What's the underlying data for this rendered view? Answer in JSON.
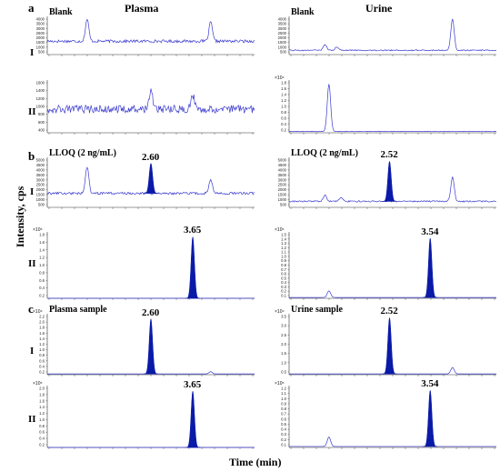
{
  "sections": [
    "a",
    "b",
    "c"
  ],
  "columns": [
    "Plasma",
    "Urine"
  ],
  "rows": [
    "I",
    "II"
  ],
  "y_axis_label": "Intensity, cps",
  "x_axis_label": "Time (min)",
  "chart_data": [
    {
      "type": "line",
      "section": "a",
      "column": "Plasma",
      "row": "I",
      "annotation": "Blank",
      "scale_text": "",
      "ytick_labels": [
        "4000",
        "3500",
        "3000",
        "2500",
        "2000",
        "1500",
        "1000",
        "500"
      ],
      "ylim": [
        300,
        4300
      ],
      "baseline": 1700,
      "noise": 150,
      "peaks": [
        [
          1.0,
          4000
        ],
        [
          4.1,
          3700
        ]
      ]
    },
    {
      "type": "line",
      "section": "a",
      "column": "Plasma",
      "row": "II",
      "annotation": "",
      "scale_text": "",
      "ytick_labels": [
        "1600",
        "1400",
        "1200",
        "1000",
        "800",
        "600",
        "400"
      ],
      "ylim": [
        300,
        1750
      ],
      "baseline": 950,
      "noise": 110,
      "peaks": [
        [
          2.6,
          1500
        ],
        [
          3.65,
          1350
        ]
      ]
    },
    {
      "type": "line",
      "section": "a",
      "column": "Urine",
      "row": "I",
      "annotation": "Blank",
      "scale_text": "",
      "ytick_labels": [
        "4000",
        "3500",
        "3000",
        "2500",
        "2000",
        "1500",
        "1000",
        "500"
      ],
      "ylim": [
        300,
        4300
      ],
      "baseline": 750,
      "noise": 60,
      "peaks": [
        [
          0.9,
          1350
        ],
        [
          1.2,
          1100
        ],
        [
          4.1,
          4000
        ]
      ]
    },
    {
      "type": "line",
      "section": "a",
      "column": "Urine",
      "row": "II",
      "annotation": "",
      "scale_text": "×10⁴",
      "ytick_labels": [
        "1.8",
        "1.6",
        "1.4",
        "1.2",
        "1.0",
        "0.8",
        "0.6",
        "0.4",
        "0.2"
      ],
      "ylim": [
        0,
        2.0
      ],
      "baseline": 0.05,
      "noise": 0.01,
      "peaks": [
        [
          1.0,
          1.85
        ]
      ]
    },
    {
      "type": "line",
      "section": "b",
      "column": "Plasma",
      "row": "I",
      "annotation": "LLOQ (2 ng/mL)",
      "scale_text": "",
      "ytick_labels": [
        "5000",
        "4500",
        "4000",
        "3500",
        "3000",
        "2500",
        "2000",
        "1500",
        "1000",
        "500"
      ],
      "ylim": [
        300,
        5300
      ],
      "baseline": 1700,
      "noise": 120,
      "peaks": [
        [
          1.0,
          4300
        ],
        [
          4.1,
          3000
        ]
      ],
      "filled_peak": {
        "rt": "2.60",
        "x": 2.6,
        "y": 4700
      }
    },
    {
      "type": "line",
      "section": "b",
      "column": "Plasma",
      "row": "II",
      "annotation": "",
      "scale_text": "×10⁵",
      "ytick_labels": [
        "1.8",
        "1.6",
        "1.4",
        "1.2",
        "1.0",
        "0.8",
        "0.6",
        "0.4",
        "0.2"
      ],
      "ylim": [
        0,
        2.0
      ],
      "baseline": 0.0,
      "noise": 0.0,
      "peaks": [],
      "filled_peak": {
        "rt": "3.65",
        "x": 3.65,
        "y": 1.85
      }
    },
    {
      "type": "line",
      "section": "b",
      "column": "Urine",
      "row": "I",
      "annotation": "LLOQ (2 ng/mL)",
      "scale_text": "",
      "ytick_labels": [
        "5000",
        "4500",
        "4000",
        "3500",
        "3000",
        "2500",
        "2000",
        "1500",
        "1000",
        "500"
      ],
      "ylim": [
        300,
        5300
      ],
      "baseline": 900,
      "noise": 70,
      "peaks": [
        [
          0.9,
          1500
        ],
        [
          1.3,
          1250
        ],
        [
          4.1,
          3300
        ]
      ],
      "filled_peak": {
        "rt": "2.52",
        "x": 2.52,
        "y": 4900
      }
    },
    {
      "type": "line",
      "section": "b",
      "column": "Urine",
      "row": "II",
      "annotation": "",
      "scale_text": "×10⁵",
      "ytick_labels": [
        "1.5",
        "1.4",
        "1.3",
        "1.2",
        "1.1",
        "1.0",
        "0.9",
        "0.8",
        "0.7",
        "0.6",
        "0.5",
        "0.4",
        "0.3",
        "0.2",
        "0.1"
      ],
      "ylim": [
        0,
        1.6
      ],
      "baseline": 0.02,
      "noise": 0.0,
      "peaks": [
        [
          1.0,
          0.18
        ]
      ],
      "filled_peak": {
        "rt": "3.54",
        "x": 3.54,
        "y": 1.45
      }
    },
    {
      "type": "line",
      "section": "c",
      "column": "Plasma",
      "row": "I",
      "annotation": "Plasma sample",
      "scale_text": "×10⁴",
      "ytick_labels": [
        "2.2",
        "2.0",
        "1.8",
        "1.6",
        "1.4",
        "1.2",
        "1.0",
        "0.8",
        "0.6",
        "0.4",
        "0.2"
      ],
      "ylim": [
        0,
        2.4
      ],
      "baseline": 0.03,
      "noise": 0.0,
      "peaks": [
        [
          4.1,
          0.12
        ]
      ],
      "filled_peak": {
        "rt": "2.60",
        "x": 2.6,
        "y": 2.2
      }
    },
    {
      "type": "line",
      "section": "c",
      "column": "Plasma",
      "row": "II",
      "annotation": "",
      "scale_text": "×10⁵",
      "ytick_labels": [
        "2.0",
        "1.8",
        "1.6",
        "1.4",
        "1.2",
        "1.0",
        "0.8",
        "0.6",
        "0.4",
        "0.2"
      ],
      "ylim": [
        0,
        2.2
      ],
      "baseline": 0.0,
      "noise": 0.0,
      "peaks": [],
      "filled_peak": {
        "rt": "3.65",
        "x": 3.65,
        "y": 2.0
      }
    },
    {
      "type": "line",
      "section": "c",
      "column": "Urine",
      "row": "I",
      "annotation": "Urine sample",
      "scale_text": "×10⁴",
      "ytick_labels": [
        "3.5",
        "3.0",
        "2.5",
        "2.0",
        "1.5",
        "1.0",
        "0.5"
      ],
      "ylim": [
        0,
        3.8
      ],
      "baseline": 0.05,
      "noise": 0.0,
      "peaks": [
        [
          4.1,
          0.45
        ]
      ],
      "filled_peak": {
        "rt": "2.52",
        "x": 2.52,
        "y": 3.55
      }
    },
    {
      "type": "line",
      "section": "c",
      "column": "Urine",
      "row": "II",
      "annotation": "",
      "scale_text": "×10⁵",
      "ytick_labels": [
        "1.2",
        "1.1",
        "1.0",
        "0.9",
        "0.8",
        "0.7",
        "0.6",
        "0.5",
        "0.4",
        "0.3",
        "0.2",
        "0.1"
      ],
      "ylim": [
        0,
        1.3
      ],
      "baseline": 0.02,
      "noise": 0.0,
      "peaks": [
        [
          1.0,
          0.22
        ]
      ],
      "filled_peak": {
        "rt": "3.54",
        "x": 3.54,
        "y": 1.2
      }
    }
  ],
  "colors": {
    "trace": "#3b3bd1",
    "fill": "#0a1aa8",
    "axis": "#333333"
  }
}
